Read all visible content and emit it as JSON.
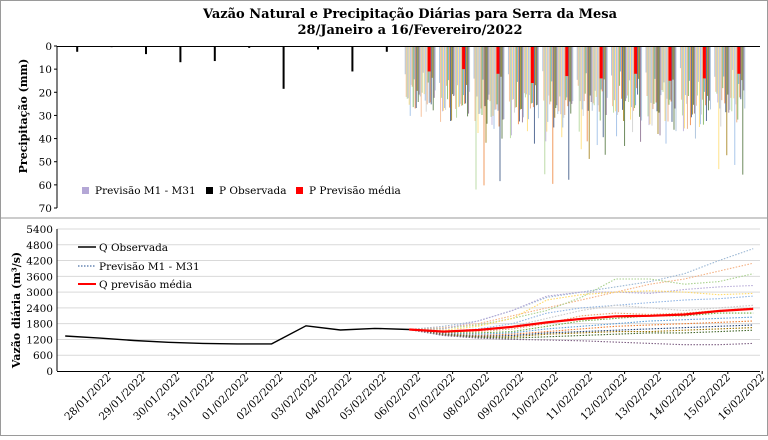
{
  "title": {
    "line1": "Vazão Natural e Precipitação Diárias para Serra da Mesa",
    "line2": "28/Janeiro a 16/Fevereiro/2022"
  },
  "colors": {
    "observed": "#000000",
    "mean": "#ff0000",
    "members": [
      "#9bb7d4",
      "#f4b183",
      "#a9d18e",
      "#b4a7d6",
      "#ffd966",
      "#8fb4e3",
      "#c9c9c9",
      "#e6a06f",
      "#70ad47",
      "#5b9bd5",
      "#ed7d31",
      "#264478",
      "#997300",
      "#43682b",
      "#7f6084"
    ]
  },
  "chart_data": [
    {
      "type": "bar",
      "title": "",
      "ylabel": "Precipitação (mm)",
      "ylim": [
        0,
        70
      ],
      "y_inverted": true,
      "yticks": [
        0,
        10,
        20,
        30,
        40,
        50,
        60,
        70
      ],
      "legend_position": "bottom-left",
      "legend": [
        "Previsão M1 - M31",
        "P Observada",
        "P Previsão média"
      ],
      "series": [
        {
          "name": "P Observada",
          "x": [
            "28/01/2022",
            "29/01/2022",
            "30/01/2022",
            "31/01/2022",
            "01/02/2022",
            "02/02/2022",
            "03/02/2022",
            "04/02/2022",
            "05/02/2022",
            "06/02/2022"
          ],
          "values": [
            2.5,
            0.5,
            3.5,
            7,
            6.5,
            0.8,
            18.5,
            1.5,
            11,
            2.5
          ]
        },
        {
          "name": "P Previsão média",
          "x": [
            "07/02/2022",
            "08/02/2022",
            "09/02/2022",
            "10/02/2022",
            "11/02/2022",
            "12/02/2022",
            "13/02/2022",
            "14/02/2022",
            "15/02/2022",
            "16/02/2022"
          ],
          "values": [
            11,
            10,
            12,
            16,
            13,
            14,
            12,
            15,
            14,
            12
          ]
        }
      ],
      "members_max": [
        [
          27,
          26,
          25,
          24,
          24,
          23,
          22,
          22,
          21,
          20
        ],
        [
          25,
          28,
          30,
          24,
          26,
          22,
          23,
          21,
          25,
          24
        ],
        [
          24,
          26,
          62,
          38,
          56,
          40,
          24,
          28,
          30,
          23
        ],
        [
          22,
          30,
          26,
          35,
          40,
          25,
          27,
          30,
          35,
          25
        ],
        [
          23,
          28,
          40,
          28,
          34,
          44,
          30,
          38,
          32,
          52
        ],
        [
          26,
          25,
          30,
          26,
          28,
          25,
          39,
          27,
          26,
          24
        ],
        [
          21,
          24,
          28,
          30,
          25,
          26,
          28,
          35,
          28,
          30
        ],
        [
          20,
          22,
          24,
          26,
          27,
          28,
          25,
          26,
          37,
          27
        ]
      ]
    },
    {
      "type": "line",
      "title": "",
      "ylabel": "Vazão diária (m³/s)",
      "ylim": [
        0,
        5400
      ],
      "yticks": [
        0,
        600,
        1200,
        1800,
        2400,
        3000,
        3600,
        4200,
        4800,
        5400
      ],
      "categories": [
        "28/01/2022",
        "29/01/2022",
        "30/01/2022",
        "31/01/2022",
        "01/02/2022",
        "02/02/2022",
        "03/02/2022",
        "04/02/2022",
        "05/02/2022",
        "06/02/2022",
        "07/02/2022",
        "08/02/2022",
        "09/02/2022",
        "10/02/2022",
        "11/02/2022",
        "12/02/2022",
        "13/02/2022",
        "14/02/2022",
        "15/02/2022",
        "16/02/2022"
      ],
      "legend_position": "top-left",
      "legend": [
        "Q Observada",
        "Previsão M1 - M31",
        "Q previsão média"
      ],
      "series": [
        {
          "name": "Q Observada",
          "x": [
            "27/01/2022",
            "28/01/2022",
            "29/01/2022",
            "30/01/2022",
            "31/01/2022",
            "01/02/2022",
            "02/02/2022",
            "03/02/2022",
            "04/02/2022",
            "05/02/2022",
            "06/02/2022"
          ],
          "values": [
            1330,
            1250,
            1160,
            1090,
            1050,
            1030,
            1030,
            1720,
            1560,
            1620,
            1580
          ]
        },
        {
          "name": "Q previsão média",
          "x": [
            "06/02/2022",
            "07/02/2022",
            "08/02/2022",
            "09/02/2022",
            "10/02/2022",
            "11/02/2022",
            "12/02/2022",
            "13/02/2022",
            "14/02/2022",
            "15/02/2022",
            "16/02/2022"
          ],
          "values": [
            1580,
            1500,
            1560,
            1680,
            1850,
            1980,
            2080,
            2100,
            2150,
            2280,
            2360
          ]
        }
      ],
      "members": [
        [
          1580,
          1700,
          1900,
          2300,
          2800,
          3000,
          3200,
          3400,
          3700,
          4200,
          4650
        ],
        [
          1580,
          1650,
          1800,
          2100,
          2400,
          2700,
          3000,
          3300,
          3500,
          3800,
          4100
        ],
        [
          1580,
          1620,
          1750,
          2000,
          2300,
          2800,
          3500,
          3500,
          3300,
          3400,
          3700
        ],
        [
          1580,
          1600,
          1900,
          2300,
          2850,
          3000,
          3000,
          2950,
          3100,
          3200,
          3250
        ],
        [
          1580,
          1550,
          1700,
          2000,
          2700,
          2900,
          3000,
          3050,
          3000,
          2900,
          2950
        ],
        [
          1580,
          1500,
          1600,
          1800,
          2200,
          2400,
          2500,
          2600,
          2700,
          2750,
          2850
        ],
        [
          1580,
          1520,
          1580,
          1700,
          2000,
          2300,
          2500,
          2400,
          2300,
          2400,
          2500
        ],
        [
          1580,
          1480,
          1500,
          1600,
          1800,
          2100,
          2200,
          2150,
          2200,
          2300,
          2400
        ],
        [
          1580,
          1450,
          1450,
          1500,
          1700,
          1900,
          2000,
          2100,
          2100,
          2200,
          2200
        ],
        [
          1580,
          1430,
          1400,
          1450,
          1600,
          1700,
          1800,
          1900,
          1950,
          2000,
          2050
        ],
        [
          1580,
          1410,
          1350,
          1400,
          1500,
          1600,
          1700,
          1750,
          1800,
          1850,
          1900
        ],
        [
          1580,
          1400,
          1320,
          1350,
          1450,
          1500,
          1550,
          1600,
          1650,
          1700,
          1750
        ],
        [
          1580,
          1380,
          1300,
          1300,
          1400,
          1450,
          1500,
          1500,
          1550,
          1600,
          1650
        ],
        [
          1580,
          1360,
          1280,
          1250,
          1300,
          1350,
          1400,
          1450,
          1450,
          1500,
          1550
        ],
        [
          1580,
          1350,
          1250,
          1200,
          1180,
          1150,
          1100,
          1050,
          1000,
          1000,
          1050
        ]
      ]
    }
  ]
}
